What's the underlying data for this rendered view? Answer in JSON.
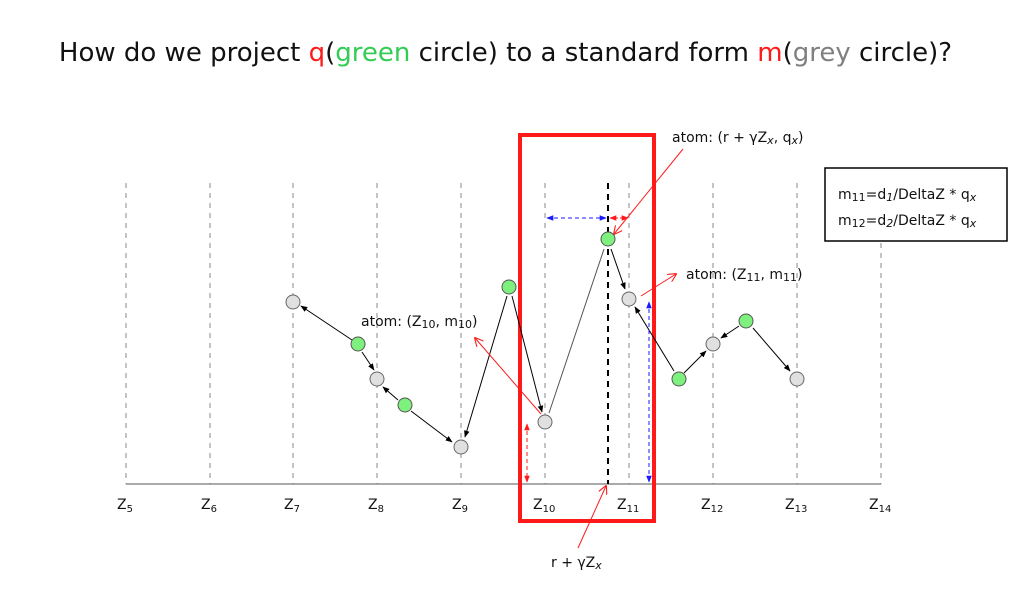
{
  "title": {
    "t1": "How do we project ",
    "q": "q",
    "p1": "(",
    "green": "green",
    "t2": " circle) to a standard form ",
    "m": "m",
    "p2": "(",
    "grey": "grey",
    "t3": " circle)?"
  },
  "axis_labels": [
    {
      "base": "Z",
      "sub": "5"
    },
    {
      "base": "Z",
      "sub": "6"
    },
    {
      "base": "Z",
      "sub": "7"
    },
    {
      "base": "Z",
      "sub": "8"
    },
    {
      "base": "Z",
      "sub": "9"
    },
    {
      "base": "Z",
      "sub": "10"
    },
    {
      "base": "Z",
      "sub": "11"
    },
    {
      "base": "Z",
      "sub": "12"
    },
    {
      "base": "Z",
      "sub": "13"
    },
    {
      "base": "Z",
      "sub": "14"
    }
  ],
  "annotations": {
    "atom_top": "atom: (r + γZ",
    "atom_top_sub": "x",
    "atom_top_mid": ", q",
    "atom_top_sub2": "x",
    "atom_top_end": ")",
    "atom_z11": "atom: (Z",
    "atom_z11_sub": "11",
    "atom_z11_mid": ", m",
    "atom_z11_sub2": "11",
    "atom_z11_end": ")",
    "atom_z10": "atom: (Z",
    "atom_z10_sub": "10",
    "atom_z10_mid": ", m",
    "atom_z10_sub2": "10",
    "atom_z10_end": ")",
    "bottom": "r + γZ",
    "bottom_sub": "x"
  },
  "formula_box": {
    "line1_a": "m",
    "line1_sub": "11",
    "line1_b": "=d",
    "line1_sub2": "1",
    "line1_c": "/DeltaZ * q",
    "line1_sub3": "x",
    "line2_a": "m",
    "line2_sub": "12",
    "line2_b": "=d",
    "line2_sub2": "2",
    "line2_c": "/DeltaZ * q",
    "line2_sub3": "x"
  },
  "colors": {
    "green_fill": "#7ef07e",
    "grey_fill": "#e0e0e0",
    "red": "#ff1a1a",
    "blue": "#1a1aff",
    "dash_grey": "#888888"
  }
}
